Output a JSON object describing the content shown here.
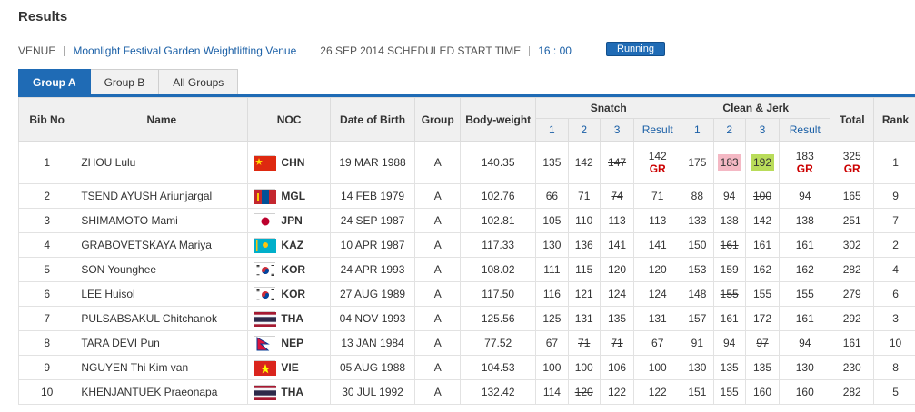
{
  "page": {
    "title": "Results"
  },
  "venue": {
    "label": "VENUE",
    "name": "Moonlight Festival Garden Weightlifting Venue",
    "schedule": "26 SEP 2014 SCHEDULED START TIME",
    "time": "16 : 00",
    "status": "Running"
  },
  "tabs": [
    {
      "label": "Group A",
      "active": true
    },
    {
      "label": "Group B",
      "active": false
    },
    {
      "label": "All Groups",
      "active": false
    }
  ],
  "headers": {
    "bib": "Bib No",
    "name": "Name",
    "noc": "NOC",
    "dob": "Date of Birth",
    "group": "Group",
    "bodyweight": "Body-weight",
    "snatch": "Snatch",
    "cj": "Clean & Jerk",
    "total": "Total",
    "rank": "Rank",
    "a1": "1",
    "a2": "2",
    "a3": "3",
    "result": "Result"
  },
  "rows": [
    {
      "bib": "1",
      "name": "ZHOU Lulu",
      "noc": "CHN",
      "flag": "chn",
      "dob": "19 MAR 1988",
      "group": "A",
      "bw": "140.35",
      "s1": "135",
      "s2": "142",
      "s3": "147",
      "sr": "142",
      "sr_rec": "GR",
      "c1": "175",
      "c2": "183",
      "c3": "192",
      "cr": "183",
      "cr_rec": "GR",
      "total": "325",
      "total_rec": "GR",
      "rank": "1"
    },
    {
      "bib": "2",
      "name": "TSEND AYUSH Ariunjargal",
      "noc": "MGL",
      "flag": "mgl",
      "dob": "14 FEB 1979",
      "group": "A",
      "bw": "102.76",
      "s1": "66",
      "s2": "71",
      "s3": "74",
      "sr": "71",
      "c1": "88",
      "c2": "94",
      "c3": "100",
      "cr": "94",
      "total": "165",
      "rank": "9"
    },
    {
      "bib": "3",
      "name": "SHIMAMOTO Mami",
      "noc": "JPN",
      "flag": "jpn",
      "dob": "24 SEP 1987",
      "group": "A",
      "bw": "102.81",
      "s1": "105",
      "s2": "110",
      "s3": "113",
      "sr": "113",
      "c1": "133",
      "c2": "138",
      "c3": "142",
      "cr": "138",
      "total": "251",
      "rank": "7"
    },
    {
      "bib": "4",
      "name": "GRABOVETSKAYA Mariya",
      "noc": "KAZ",
      "flag": "kaz",
      "dob": "10 APR 1987",
      "group": "A",
      "bw": "117.33",
      "s1": "130",
      "s2": "136",
      "s3": "141",
      "sr": "141",
      "c1": "150",
      "c2": "161",
      "c3": "161",
      "cr": "161",
      "total": "302",
      "rank": "2"
    },
    {
      "bib": "5",
      "name": "SON Younghee",
      "noc": "KOR",
      "flag": "kor",
      "dob": "24 APR 1993",
      "group": "A",
      "bw": "108.02",
      "s1": "111",
      "s2": "115",
      "s3": "120",
      "sr": "120",
      "c1": "153",
      "c2": "159",
      "c3": "162",
      "cr": "162",
      "total": "282",
      "rank": "4"
    },
    {
      "bib": "6",
      "name": "LEE Huisol",
      "noc": "KOR",
      "flag": "kor",
      "dob": "27 AUG 1989",
      "group": "A",
      "bw": "117.50",
      "s1": "116",
      "s2": "121",
      "s3": "124",
      "sr": "124",
      "c1": "148",
      "c2": "155",
      "c3": "155",
      "cr": "155",
      "total": "279",
      "rank": "6"
    },
    {
      "bib": "7",
      "name": "PULSABSAKUL Chitchanok",
      "noc": "THA",
      "flag": "tha",
      "dob": "04 NOV 1993",
      "group": "A",
      "bw": "125.56",
      "s1": "125",
      "s2": "131",
      "s3": "135",
      "sr": "131",
      "c1": "157",
      "c2": "161",
      "c3": "172",
      "cr": "161",
      "total": "292",
      "rank": "3"
    },
    {
      "bib": "8",
      "name": "TARA DEVI Pun",
      "noc": "NEP",
      "flag": "nep",
      "dob": "13 JAN 1984",
      "group": "A",
      "bw": "77.52",
      "s1": "67",
      "s2": "71",
      "s3": "71",
      "sr": "67",
      "c1": "91",
      "c2": "94",
      "c3": "97",
      "cr": "94",
      "total": "161",
      "rank": "10"
    },
    {
      "bib": "9",
      "name": "NGUYEN Thi Kim van",
      "noc": "VIE",
      "flag": "vie",
      "dob": "05 AUG 1988",
      "group": "A",
      "bw": "104.53",
      "s1": "100",
      "s2": "100",
      "s3": "106",
      "sr": "100",
      "c1": "130",
      "c2": "135",
      "c3": "135",
      "cr": "130",
      "total": "230",
      "rank": "8"
    },
    {
      "bib": "10",
      "name": "KHENJANTUEK Praeonapa",
      "noc": "THA",
      "flag": "tha",
      "dob": "30 JUL 1992",
      "group": "A",
      "bw": "132.42",
      "s1": "114",
      "s2": "120",
      "s3": "122",
      "sr": "122",
      "c1": "151",
      "c2": "155",
      "c3": "160",
      "cr": "160",
      "total": "282",
      "rank": "5"
    }
  ]
}
